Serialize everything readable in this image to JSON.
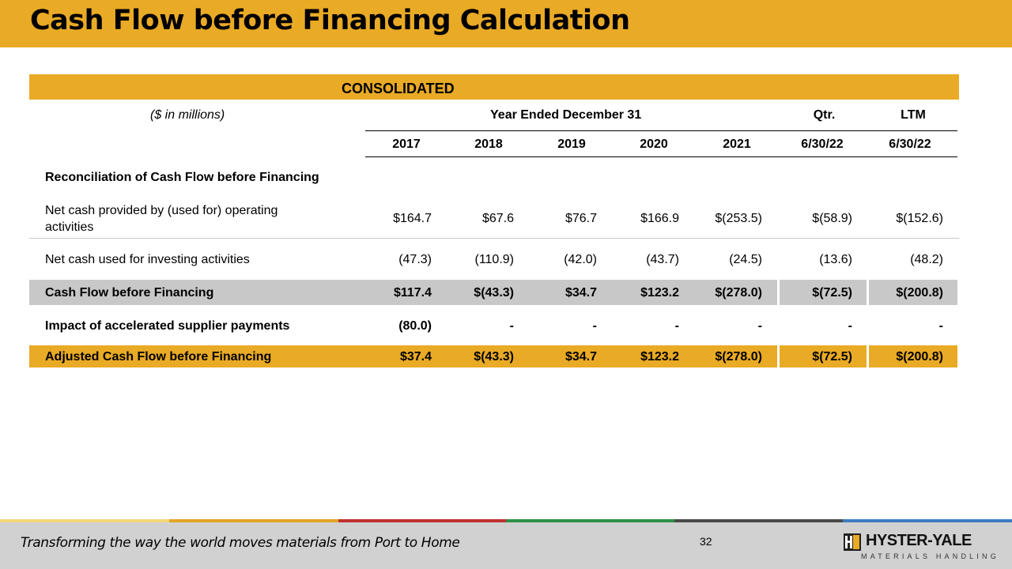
{
  "slide": {
    "title": "Cash Flow before Financing Calculation",
    "page_number": "32",
    "tagline": "Transforming the way the world moves materials from Port to Home",
    "logo": {
      "wordmark": "HYSTER-YALE",
      "subtitle": "MATERIALS HANDLING",
      "brand_color": "#e9aa25"
    }
  },
  "table": {
    "banner": "CONSOLIDATED",
    "units_label": "($ in millions)",
    "group_headers": {
      "year": "Year Ended December 31",
      "qtr": "Qtr.",
      "ltm": "LTM"
    },
    "columns": [
      "2017",
      "2018",
      "2019",
      "2020",
      "2021",
      "6/30/22",
      "6/30/22"
    ],
    "section_heading": "Reconciliation of Cash Flow before Financing",
    "rows": [
      {
        "label_line1": "Net cash provided by (used for) operating",
        "label_line2": "activities",
        "values": [
          "$164.7",
          "$67.6",
          "$76.7",
          "$166.9",
          "$(253.5)",
          "$(58.9)",
          "$(152.6)"
        ]
      },
      {
        "label": "Net cash used for investing activities",
        "values": [
          "(47.3)",
          "(110.9)",
          "(42.0)",
          "(43.7)",
          "(24.5)",
          "(13.6)",
          "(48.2)"
        ]
      },
      {
        "label": "Cash Flow before Financing",
        "values": [
          "$117.4",
          "$(43.3)",
          "$34.7",
          "$123.2",
          "$(278.0)",
          "$(72.5)",
          "$(200.8)"
        ]
      },
      {
        "label": "Impact of accelerated supplier payments",
        "values": [
          "(80.0)",
          "-",
          "-",
          "-",
          "-",
          "-",
          "-"
        ]
      },
      {
        "label": "Adjusted Cash Flow before Financing",
        "values": [
          "$37.4",
          "$(43.3)",
          "$34.7",
          "$123.2",
          "$(278.0)",
          "$(72.5)",
          "$(200.8)"
        ]
      }
    ]
  },
  "colors": {
    "accent_gold": "#e9aa25",
    "highlight_gray": "#c8c8c8",
    "footer_gray": "#d1d1d1"
  }
}
